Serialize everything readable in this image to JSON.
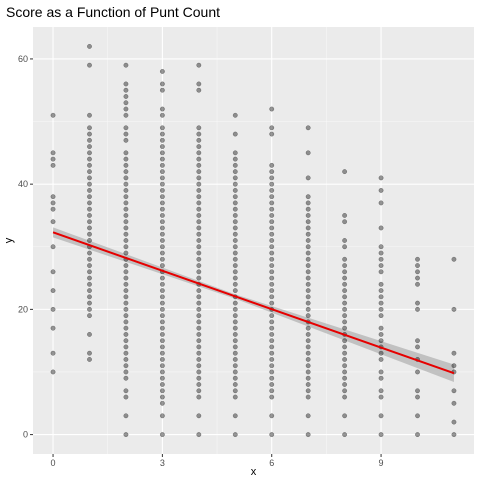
{
  "chart_data": {
    "type": "scatter",
    "title": "Score as a Function of Punt Count",
    "xlabel": "x",
    "ylabel": "y",
    "xlim": [
      -0.55,
      11.55
    ],
    "ylim": [
      -3.1,
      65.1
    ],
    "x_ticks": [
      0,
      3,
      6,
      9
    ],
    "x_tick_labels": [
      "0",
      "3",
      "6",
      "9"
    ],
    "y_ticks": [
      0,
      20,
      40,
      60
    ],
    "y_tick_labels": [
      "0",
      "20",
      "40",
      "60"
    ],
    "grid": true,
    "panel_background": "#ebebeb",
    "point_color": "#000000",
    "point_opacity": 0.4,
    "fit_line": {
      "color": "#e60000",
      "from": [
        0,
        32.3
      ],
      "to": [
        11,
        9.8
      ]
    },
    "ribbon_color": "#b3b3b3",
    "ribbon": [
      {
        "x": 0,
        "lo": 31.5,
        "hi": 33.1
      },
      {
        "x": 5,
        "lo": 21.7,
        "hi": 22.4
      },
      {
        "x": 11,
        "lo": 8.4,
        "hi": 11.2
      }
    ],
    "points": [
      {
        "x": 0,
        "y": [
          51,
          45,
          44,
          43,
          38,
          37,
          36,
          34,
          30,
          26,
          23,
          20,
          17,
          13,
          10
        ]
      },
      {
        "x": 1,
        "y": [
          62,
          59,
          51,
          49,
          48,
          47,
          46,
          45,
          44,
          43,
          42,
          41,
          40,
          39,
          38,
          37,
          36,
          35,
          34,
          33,
          32,
          31,
          30,
          29,
          28,
          27,
          26,
          25,
          24,
          23,
          22,
          21,
          20,
          19,
          16,
          13,
          12
        ]
      },
      {
        "x": 2,
        "y": [
          59,
          56,
          55,
          54,
          53,
          52,
          51,
          49,
          48,
          47,
          45,
          44,
          43,
          42,
          41,
          40,
          39,
          38,
          37,
          36,
          35,
          34,
          33,
          32,
          31,
          30,
          29,
          28,
          27,
          26,
          25,
          24,
          23,
          22,
          21,
          20,
          19,
          18,
          17,
          16,
          15,
          14,
          13,
          12,
          11,
          10,
          9,
          7,
          6,
          3,
          0
        ]
      },
      {
        "x": 3,
        "y": [
          58,
          56,
          55,
          52,
          51,
          49,
          48,
          47,
          46,
          45,
          44,
          43,
          42,
          41,
          40,
          39,
          38,
          37,
          36,
          35,
          34,
          33,
          32,
          31,
          30,
          29,
          28,
          27,
          26,
          25,
          24,
          23,
          22,
          21,
          20,
          19,
          18,
          17,
          16,
          15,
          14,
          13,
          12,
          11,
          10,
          9,
          8,
          7,
          6,
          5,
          3,
          0
        ]
      },
      {
        "x": 4,
        "y": [
          59,
          56,
          55,
          49,
          48,
          47,
          46,
          45,
          44,
          43,
          42,
          41,
          40,
          39,
          38,
          37,
          36,
          35,
          34,
          33,
          32,
          31,
          30,
          29,
          28,
          27,
          26,
          25,
          24,
          23,
          22,
          21,
          20,
          19,
          18,
          17,
          16,
          15,
          14,
          13,
          12,
          11,
          10,
          9,
          8,
          7,
          6,
          3,
          0
        ]
      },
      {
        "x": 5,
        "y": [
          51,
          48,
          45,
          44,
          43,
          42,
          41,
          40,
          39,
          38,
          37,
          36,
          35,
          34,
          33,
          32,
          31,
          30,
          29,
          28,
          27,
          26,
          25,
          24,
          23,
          22,
          21,
          20,
          19,
          18,
          17,
          16,
          15,
          14,
          13,
          12,
          11,
          10,
          9,
          8,
          7,
          6,
          3,
          0
        ]
      },
      {
        "x": 6,
        "y": [
          52,
          49,
          48,
          43,
          42,
          41,
          40,
          39,
          38,
          37,
          36,
          35,
          34,
          33,
          32,
          31,
          30,
          29,
          28,
          27,
          26,
          25,
          24,
          23,
          22,
          21,
          20,
          19,
          18,
          17,
          16,
          15,
          14,
          13,
          12,
          11,
          10,
          9,
          8,
          7,
          6,
          3,
          0
        ]
      },
      {
        "x": 7,
        "y": [
          49,
          45,
          41,
          38,
          37,
          36,
          35,
          34,
          33,
          32,
          31,
          30,
          29,
          28,
          27,
          26,
          25,
          24,
          23,
          22,
          21,
          20,
          19,
          18,
          17,
          16,
          15,
          14,
          13,
          12,
          11,
          10,
          9,
          8,
          7,
          6,
          3,
          0
        ]
      },
      {
        "x": 8,
        "y": [
          42,
          35,
          34,
          31,
          30,
          28,
          27,
          26,
          25,
          24,
          23,
          22,
          21,
          20,
          19,
          18,
          17,
          16,
          15,
          14,
          13,
          12,
          11,
          10,
          9,
          8,
          7,
          6,
          3,
          0
        ]
      },
      {
        "x": 9,
        "y": [
          41,
          39,
          37,
          33,
          30,
          29,
          28,
          27,
          26,
          24,
          23,
          22,
          21,
          20,
          19,
          17,
          16,
          15,
          14,
          13,
          12,
          10,
          9,
          7,
          6,
          3,
          0
        ]
      },
      {
        "x": 10,
        "y": [
          28,
          27,
          26,
          25,
          24,
          21,
          20,
          15,
          14,
          12,
          10,
          7,
          6,
          3,
          0
        ]
      },
      {
        "x": 11,
        "y": [
          28,
          20,
          13,
          11,
          10,
          7,
          5,
          2,
          0
        ]
      }
    ]
  }
}
